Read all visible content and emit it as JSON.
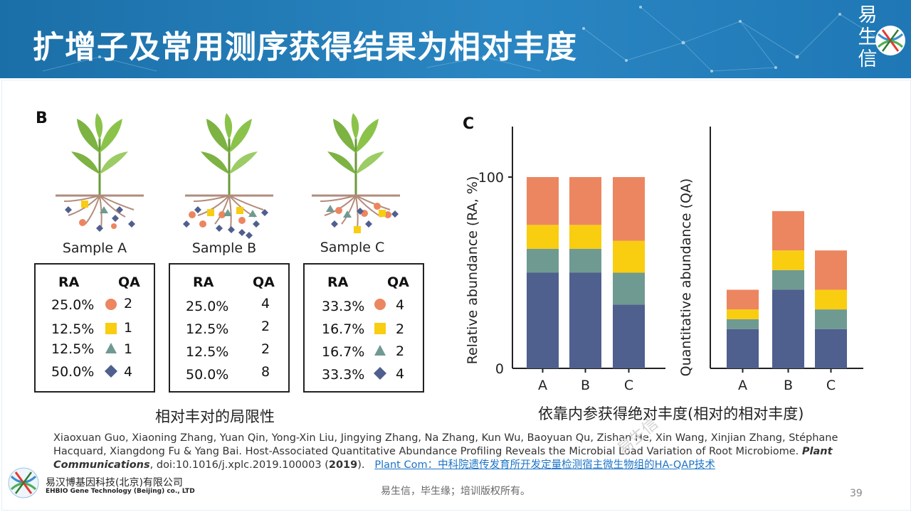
{
  "header": {
    "title": "扩增子及常用测序获得结果为相对丰度",
    "logo_text": "易生信"
  },
  "panel_b": {
    "label": "B",
    "samples": [
      {
        "name": "Sample A",
        "ra_header": "RA",
        "qa_header": "QA",
        "rows": [
          {
            "ra": "25.0%",
            "qa": "2",
            "marker": "circle"
          },
          {
            "ra": "12.5%",
            "qa": "1",
            "marker": "square"
          },
          {
            "ra": "12.5%",
            "qa": "1",
            "marker": "triangle"
          },
          {
            "ra": "50.0%",
            "qa": "4",
            "marker": "diamond"
          }
        ]
      },
      {
        "name": "Sample B",
        "ra_header": "RA",
        "qa_header": "QA",
        "rows": [
          {
            "ra": "25.0%",
            "qa": "4",
            "marker": ""
          },
          {
            "ra": "12.5%",
            "qa": "2",
            "marker": ""
          },
          {
            "ra": "12.5%",
            "qa": "2",
            "marker": ""
          },
          {
            "ra": "50.0%",
            "qa": "8",
            "marker": ""
          }
        ]
      },
      {
        "name": "Sample C",
        "ra_header": "RA",
        "qa_header": "QA",
        "rows": [
          {
            "ra": "33.3%",
            "qa": "4",
            "marker": "circle"
          },
          {
            "ra": "16.7%",
            "qa": "2",
            "marker": "square"
          },
          {
            "ra": "16.7%",
            "qa": "2",
            "marker": "triangle"
          },
          {
            "ra": "33.3%",
            "qa": "4",
            "marker": "diamond"
          }
        ]
      }
    ],
    "caption": "相对丰对的局限性"
  },
  "panel_c": {
    "label": "C",
    "caption": "依靠内参获得绝对丰度(相对的相对丰度)"
  },
  "colors": {
    "navy": "#4f5f8e",
    "teal": "#6f9a92",
    "yellow": "#f9cd10",
    "orange": "#ec8660",
    "header_blue": "#1f78b5"
  },
  "chart_data": [
    {
      "type": "bar",
      "stacked": true,
      "categories": [
        "A",
        "B",
        "C"
      ],
      "ylabel": "Relative abundance (RA, %)",
      "yticks": [
        "0",
        "100"
      ],
      "ylim": [
        0,
        125
      ],
      "series": [
        {
          "color": "#4f5f8e",
          "values": [
            50,
            50,
            33.3
          ]
        },
        {
          "color": "#6f9a92",
          "values": [
            12.5,
            12.5,
            16.7
          ]
        },
        {
          "color": "#f9cd10",
          "values": [
            12.5,
            12.5,
            16.7
          ]
        },
        {
          "color": "#ec8660",
          "values": [
            25,
            25,
            33.3
          ]
        }
      ]
    },
    {
      "type": "bar",
      "stacked": true,
      "categories": [
        "A",
        "B",
        "C"
      ],
      "ylabel": "Quantitative abundance (QA)",
      "ylim": [
        0,
        18
      ],
      "series": [
        {
          "color": "#4f5f8e",
          "values": [
            4,
            8,
            4
          ]
        },
        {
          "color": "#6f9a92",
          "values": [
            1,
            2,
            2
          ]
        },
        {
          "color": "#f9cd10",
          "values": [
            1,
            2,
            2
          ]
        },
        {
          "color": "#ec8660",
          "values": [
            2,
            4,
            4
          ]
        }
      ]
    }
  ],
  "reference": {
    "authors": "Xiaoxuan Guo, Xiaoning Zhang, Yuan Qin, Yong-Xin Liu, Jingying Zhang, Na Zhang, Kun Wu, Baoyuan Qu, Zishan He, Xin Wang, Xinjian Zhang, Stéphane Hacquard, Xiangdong Fu & Yang Bai. Host-Associated Quantitative Abundance Profiling Reveals the Microbial Load Variation of Root Microbiome.",
    "journal": "Plant Communications",
    "doi": ", doi:10.1016/j.xplc.2019.100003 (",
    "year": "2019",
    "doi_end": ").",
    "link": "Plant Com：中科院遗传发育所开发定量检测宿主微生物组的HA-QAP技术"
  },
  "footer": {
    "text": "易生信，毕生缘；培训版权所有。",
    "page": "39"
  },
  "company": {
    "cn": "易汉博基因科技(北京)有限公司",
    "en": "EHBIO Gene Technology (Beijing) co., LTD"
  },
  "watermark": "易生信"
}
